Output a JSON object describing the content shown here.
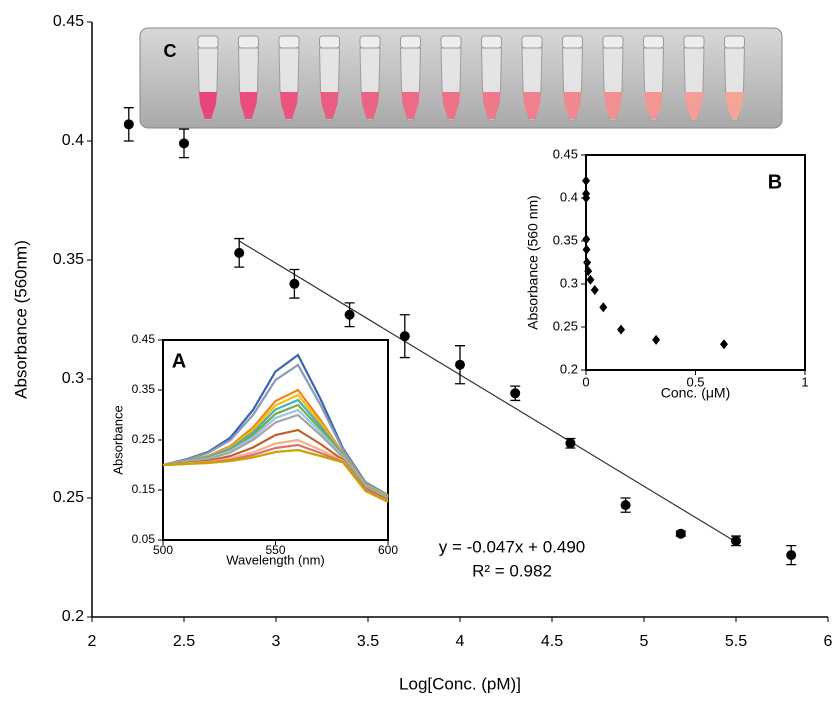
{
  "chart_data": [
    {
      "type": "scatter",
      "xlabel": "Log[Conc. (pM)]",
      "ylabel": "Absorbance (560nm)",
      "xlim": [
        2,
        6
      ],
      "xticks": [
        2,
        2.5,
        3,
        3.5,
        4,
        4.5,
        5,
        5.5,
        6
      ],
      "ylim": [
        0.2,
        0.45
      ],
      "yticks": [
        0.2,
        0.25,
        0.3,
        0.35,
        0.4,
        0.45
      ],
      "x": [
        2.2,
        2.5,
        2.8,
        3.1,
        3.4,
        3.7,
        4.0,
        4.3,
        4.6,
        4.9,
        5.2,
        5.5,
        5.8
      ],
      "series": [
        {
          "color": "#000000",
          "values": [
            0.407,
            0.399,
            0.353,
            0.34,
            0.327,
            0.318,
            0.306,
            0.294,
            0.273,
            0.247,
            0.235,
            0.232,
            0.226
          ],
          "errors": [
            0.007,
            0.006,
            0.006,
            0.006,
            0.005,
            0.009,
            0.008,
            0.003,
            0.002,
            0.003,
            0.001,
            0.002,
            0.004
          ]
        }
      ],
      "trendline": {
        "x": [
          2.8,
          5.5
        ],
        "values": [
          0.358,
          0.2315
        ],
        "color": "#333333"
      },
      "annotations": [
        "y = -0.047x + 0.490",
        "R² = 0.982"
      ],
      "photo_label": "C"
    },
    {
      "type": "line",
      "label": "A",
      "xlabel": "Wavelength (nm)",
      "ylabel": "Absorbance",
      "xlim": [
        500,
        600
      ],
      "xticks": [
        500,
        550,
        600
      ],
      "ylim": [
        0.05,
        0.45
      ],
      "yticks": [
        0.05,
        0.15,
        0.25,
        0.35,
        0.45
      ],
      "x": [
        500,
        510,
        520,
        530,
        540,
        550,
        560,
        570,
        580,
        590,
        600
      ],
      "series": [
        {
          "color": "#3a66b0",
          "values": [
            0.2,
            0.211,
            0.226,
            0.255,
            0.31,
            0.387,
            0.42,
            0.332,
            0.233,
            0.165,
            0.14
          ]
        },
        {
          "color": "#8a9ab8",
          "values": [
            0.2,
            0.21,
            0.224,
            0.25,
            0.3,
            0.37,
            0.4,
            0.32,
            0.23,
            0.163,
            0.14
          ]
        },
        {
          "color": "#f0841c",
          "values": [
            0.2,
            0.208,
            0.218,
            0.238,
            0.275,
            0.328,
            0.35,
            0.29,
            0.223,
            0.16,
            0.138
          ]
        },
        {
          "color": "#f5c000",
          "values": [
            0.2,
            0.207,
            0.217,
            0.235,
            0.27,
            0.319,
            0.34,
            0.284,
            0.221,
            0.16,
            0.137
          ]
        },
        {
          "color": "#4bacc6",
          "values": [
            0.2,
            0.207,
            0.216,
            0.233,
            0.265,
            0.311,
            0.33,
            0.278,
            0.22,
            0.158,
            0.136
          ]
        },
        {
          "color": "#70ad47",
          "values": [
            0.2,
            0.206,
            0.214,
            0.23,
            0.26,
            0.302,
            0.32,
            0.272,
            0.218,
            0.157,
            0.135
          ]
        },
        {
          "color": "#9dc3e6",
          "values": [
            0.2,
            0.206,
            0.213,
            0.228,
            0.255,
            0.294,
            0.31,
            0.266,
            0.217,
            0.156,
            0.134
          ]
        },
        {
          "color": "#a5a5a5",
          "values": [
            0.2,
            0.205,
            0.212,
            0.225,
            0.25,
            0.285,
            0.3,
            0.26,
            0.215,
            0.155,
            0.133
          ]
        },
        {
          "color": "#c0602a",
          "values": [
            0.2,
            0.204,
            0.208,
            0.218,
            0.235,
            0.26,
            0.27,
            0.242,
            0.21,
            0.152,
            0.13
          ]
        },
        {
          "color": "#f4b183",
          "values": [
            0.2,
            0.203,
            0.206,
            0.213,
            0.225,
            0.243,
            0.25,
            0.23,
            0.208,
            0.15,
            0.128
          ]
        },
        {
          "color": "#e07070",
          "values": [
            0.2,
            0.202,
            0.205,
            0.21,
            0.22,
            0.234,
            0.24,
            0.224,
            0.206,
            0.15,
            0.127
          ]
        },
        {
          "color": "#c9a400",
          "values": [
            0.2,
            0.202,
            0.204,
            0.208,
            0.215,
            0.226,
            0.23,
            0.218,
            0.205,
            0.148,
            0.126
          ]
        }
      ]
    },
    {
      "type": "scatter",
      "label": "B",
      "xlabel": "Conc. (μM)",
      "ylabel": "Absorbance (560 nm)",
      "xlim": [
        0,
        1
      ],
      "xticks": [
        0,
        0.5,
        1
      ],
      "ylim": [
        0.2,
        0.45
      ],
      "yticks": [
        0.2,
        0.25,
        0.3,
        0.35,
        0.4,
        0.45
      ],
      "x": [
        0.00016,
        0.00032,
        0.00063,
        0.0013,
        0.0025,
        0.005,
        0.01,
        0.02,
        0.04,
        0.079,
        0.16,
        0.32,
        0.63
      ],
      "series": [
        {
          "color": "#000000",
          "marker": "diamond",
          "values": [
            0.42,
            0.405,
            0.4,
            0.352,
            0.34,
            0.325,
            0.315,
            0.305,
            0.293,
            0.273,
            0.247,
            0.235,
            0.23
          ]
        }
      ]
    }
  ]
}
